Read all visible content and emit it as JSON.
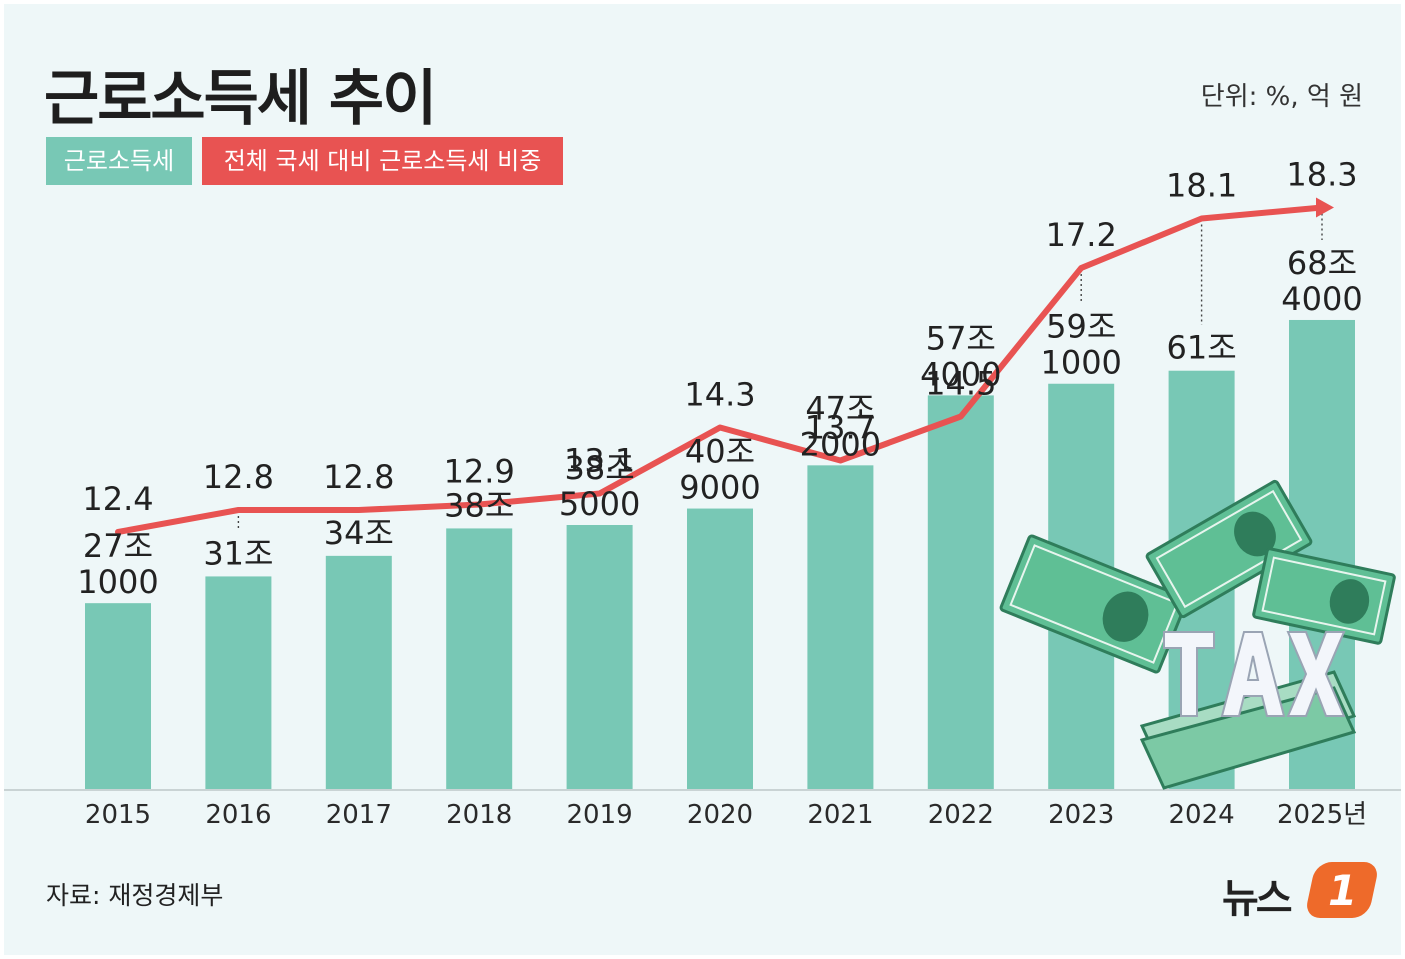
{
  "title": "근로소득세 추이",
  "unit_label": "단위: %, 억 원",
  "source": "자료: 재정경제부",
  "logo": {
    "text": "뉴스",
    "mark": "1"
  },
  "colors": {
    "bar": "#78c8b5",
    "line": "#e85352",
    "background": "#eef7f8",
    "text": "#222222"
  },
  "chart_data": {
    "type": "bar",
    "title": "근로소득세 추이",
    "xlabel": "",
    "ylabel": "",
    "categories": [
      "2015",
      "2016",
      "2017",
      "2018",
      "2019",
      "2020",
      "2021",
      "2022",
      "2023",
      "2024",
      "2025년"
    ],
    "legend": [
      "근로소득세",
      "전체 국세 대비 근로소득세 비중"
    ],
    "legend_position": "top-left",
    "grid": false,
    "series": [
      {
        "name": "근로소득세",
        "type": "bar",
        "values": [
          271000,
          310000,
          340000,
          380000,
          385000,
          409000,
          472000,
          574000,
          591000,
          610000,
          684000
        ],
        "labels_top": [
          "27조",
          "31조",
          "34조",
          "38조",
          "38조",
          "40조",
          "47조",
          "57조",
          "59조",
          "61조",
          "68조"
        ],
        "labels_bottom": [
          "1000",
          "",
          "",
          "",
          "5000",
          "9000",
          "2000",
          "4000",
          "1000",
          "",
          "4000"
        ],
        "ylim": [
          0,
          700000
        ]
      },
      {
        "name": "전체 국세 대비 근로소득세 비중",
        "type": "line",
        "values": [
          12.4,
          12.8,
          12.8,
          12.9,
          13.1,
          14.3,
          13.7,
          14.5,
          17.2,
          18.1,
          18.3
        ],
        "ylim": [
          8,
          20
        ]
      }
    ]
  }
}
